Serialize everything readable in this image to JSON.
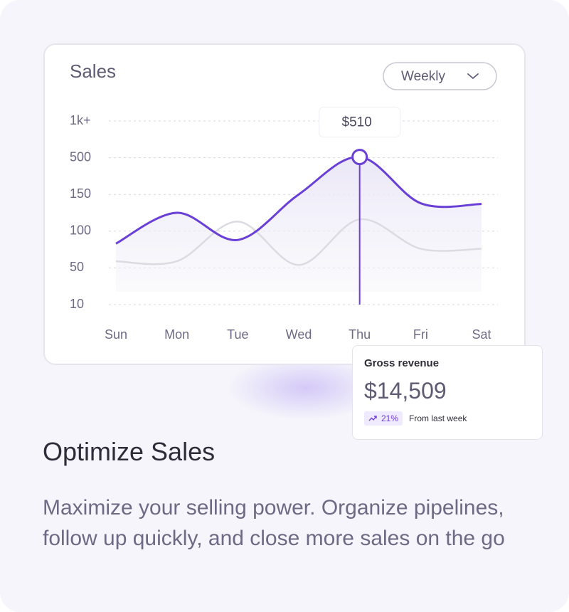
{
  "chart_data": {
    "type": "line",
    "title": "Sales",
    "categories": [
      "Sun",
      "Mon",
      "Tue",
      "Wed",
      "Thu",
      "Fri",
      "Sat"
    ],
    "series": [
      {
        "color": "#6a3fd6",
        "values": [
          83,
          125,
          88,
          150,
          510,
          138,
          137
        ],
        "value_labels": [
          null,
          null,
          null,
          null,
          "$510",
          null,
          null
        ]
      },
      {
        "color": "#dcdbe2",
        "values": [
          59,
          59,
          113,
          54,
          116,
          76,
          76
        ]
      }
    ],
    "ylim": [
      10,
      1000
    ],
    "yticks": [
      10,
      50,
      100,
      150,
      500,
      {
        "value": 1000,
        "label": "1k+"
      }
    ],
    "grid": true
  },
  "dropdown": {
    "label": "Weekly"
  },
  "revenue_card": {
    "title": "Gross revenue",
    "value": "$14,509",
    "change": "21%",
    "change_note": "From last week"
  },
  "heading": "Optimize Sales",
  "description": "Maximize your selling power. Organize pipelines, follow up quickly, and close more sales on the go"
}
